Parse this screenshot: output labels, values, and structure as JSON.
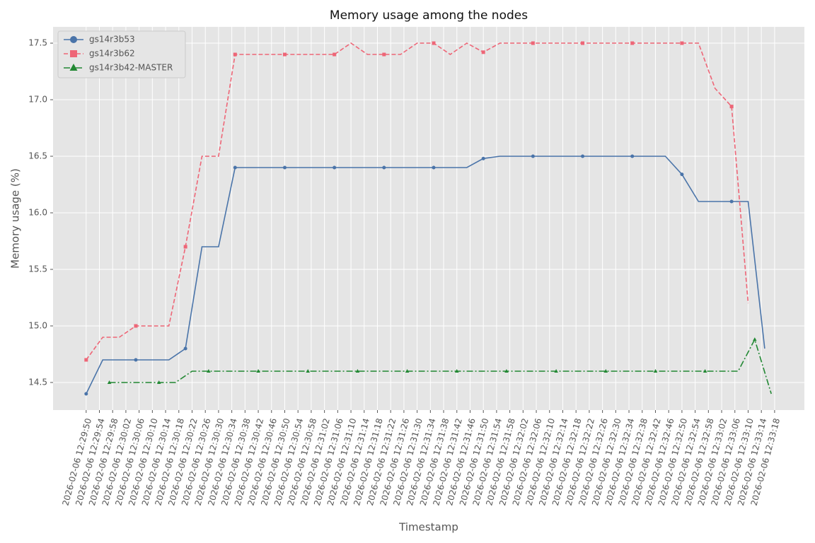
{
  "chart_data": {
    "type": "line",
    "title": "Memory usage among the nodes",
    "x_label": "Timestamp",
    "y_label": "Memory usage (%)",
    "grid": true,
    "legend": "upper left",
    "xlim": [
      "2026-02-06 12:29:40",
      "2026-02-06 12:33:27"
    ],
    "xticks": [
      "2026-02-06 12:29:50",
      "2026-02-06 12:29:54",
      "2026-02-06 12:29:58",
      "2026-02-06 12:30:02",
      "2026-02-06 12:30:06",
      "2026-02-06 12:30:10",
      "2026-02-06 12:30:14",
      "2026-02-06 12:30:18",
      "2026-02-06 12:30:22",
      "2026-02-06 12:30:26",
      "2026-02-06 12:30:30",
      "2026-02-06 12:30:34",
      "2026-02-06 12:30:38",
      "2026-02-06 12:30:42",
      "2026-02-06 12:30:46",
      "2026-02-06 12:30:50",
      "2026-02-06 12:30:54",
      "2026-02-06 12:30:58",
      "2026-02-06 12:31:02",
      "2026-02-06 12:31:06",
      "2026-02-06 12:31:10",
      "2026-02-06 12:31:14",
      "2026-02-06 12:31:18",
      "2026-02-06 12:31:22",
      "2026-02-06 12:31:26",
      "2026-02-06 12:31:30",
      "2026-02-06 12:31:34",
      "2026-02-06 12:31:38",
      "2026-02-06 12:31:42",
      "2026-02-06 12:31:46",
      "2026-02-06 12:31:50",
      "2026-02-06 12:31:54",
      "2026-02-06 12:31:58",
      "2026-02-06 12:32:02",
      "2026-02-06 12:32:06",
      "2026-02-06 12:32:10",
      "2026-02-06 12:32:14",
      "2026-02-06 12:32:18",
      "2026-02-06 12:32:22",
      "2026-02-06 12:32:26",
      "2026-02-06 12:32:30",
      "2026-02-06 12:32:34",
      "2026-02-06 12:32:38",
      "2026-02-06 12:32:42",
      "2026-02-06 12:32:46",
      "2026-02-06 12:32:50",
      "2026-02-06 12:32:54",
      "2026-02-06 12:32:58",
      "2026-02-06 12:33:02",
      "2026-02-06 12:33:06",
      "2026-02-06 12:33:10",
      "2026-02-06 12:33:14",
      "2026-02-06 12:33:18"
    ],
    "ylim": [
      14.256,
      17.644
    ],
    "yticks": [
      14.5,
      {
        "value": 15,
        "label": "15.0"
      },
      15.5,
      {
        "value": 16,
        "label": "16.0"
      },
      16.5,
      {
        "value": 17,
        "label": "17.0"
      },
      17.5
    ],
    "series": [
      {
        "name": "gs14r3b53",
        "color": "#4a74a9",
        "linestyle": "solid",
        "marker": "circle",
        "markevery": 3,
        "x": [
          "2026-02-06 12:29:50",
          "2026-02-06 12:29:55",
          "2026-02-06 12:30:00",
          "2026-02-06 12:30:05",
          "2026-02-06 12:30:10",
          "2026-02-06 12:30:15",
          "2026-02-06 12:30:20",
          "2026-02-06 12:30:25",
          "2026-02-06 12:30:30",
          "2026-02-06 12:30:35",
          "2026-02-06 12:30:40",
          "2026-02-06 12:30:45",
          "2026-02-06 12:30:50",
          "2026-02-06 12:30:55",
          "2026-02-06 12:31:00",
          "2026-02-06 12:31:05",
          "2026-02-06 12:31:10",
          "2026-02-06 12:31:15",
          "2026-02-06 12:31:20",
          "2026-02-06 12:31:25",
          "2026-02-06 12:31:30",
          "2026-02-06 12:31:35",
          "2026-02-06 12:31:40",
          "2026-02-06 12:31:45",
          "2026-02-06 12:31:50",
          "2026-02-06 12:31:55",
          "2026-02-06 12:32:00",
          "2026-02-06 12:32:05",
          "2026-02-06 12:32:10",
          "2026-02-06 12:32:15",
          "2026-02-06 12:32:20",
          "2026-02-06 12:32:25",
          "2026-02-06 12:32:30",
          "2026-02-06 12:32:35",
          "2026-02-06 12:32:40",
          "2026-02-06 12:32:45",
          "2026-02-06 12:32:50",
          "2026-02-06 12:32:55",
          "2026-02-06 12:33:00",
          "2026-02-06 12:33:05",
          "2026-02-06 12:33:10",
          "2026-02-06 12:33:15"
        ],
        "values": [
          14.4,
          14.7,
          14.7,
          14.7,
          14.7,
          14.7,
          14.8,
          15.7,
          15.7,
          16.4,
          16.4,
          16.4,
          16.4,
          16.4,
          16.4,
          16.4,
          16.4,
          16.4,
          16.4,
          16.4,
          16.4,
          16.4,
          16.4,
          16.4,
          16.48,
          16.5,
          16.5,
          16.5,
          16.5,
          16.5,
          16.5,
          16.5,
          16.5,
          16.5,
          16.5,
          16.5,
          16.34,
          16.1,
          16.1,
          16.1,
          16.1,
          14.8
        ]
      },
      {
        "name": "gs14r3b62",
        "color": "#ee6677",
        "linestyle": "dashed",
        "marker": "square",
        "markevery": 3,
        "x": [
          "2026-02-06 12:29:50",
          "2026-02-06 12:29:55",
          "2026-02-06 12:30:00",
          "2026-02-06 12:30:05",
          "2026-02-06 12:30:10",
          "2026-02-06 12:30:15",
          "2026-02-06 12:30:20",
          "2026-02-06 12:30:25",
          "2026-02-06 12:30:30",
          "2026-02-06 12:30:35",
          "2026-02-06 12:30:40",
          "2026-02-06 12:30:45",
          "2026-02-06 12:30:50",
          "2026-02-06 12:30:55",
          "2026-02-06 12:31:00",
          "2026-02-06 12:31:05",
          "2026-02-06 12:31:10",
          "2026-02-06 12:31:15",
          "2026-02-06 12:31:20",
          "2026-02-06 12:31:25",
          "2026-02-06 12:31:30",
          "2026-02-06 12:31:35",
          "2026-02-06 12:31:40",
          "2026-02-06 12:31:45",
          "2026-02-06 12:31:50",
          "2026-02-06 12:31:55",
          "2026-02-06 12:32:00",
          "2026-02-06 12:32:05",
          "2026-02-06 12:32:10",
          "2026-02-06 12:32:15",
          "2026-02-06 12:32:20",
          "2026-02-06 12:32:25",
          "2026-02-06 12:32:30",
          "2026-02-06 12:32:35",
          "2026-02-06 12:32:40",
          "2026-02-06 12:32:45",
          "2026-02-06 12:32:50",
          "2026-02-06 12:32:55",
          "2026-02-06 12:33:00",
          "2026-02-06 12:33:05",
          "2026-02-06 12:33:10"
        ],
        "values": [
          14.7,
          14.9,
          14.9,
          15.0,
          15.0,
          15.0,
          15.7,
          16.5,
          16.5,
          17.4,
          17.4,
          17.4,
          17.4,
          17.4,
          17.4,
          17.4,
          17.5,
          17.4,
          17.4,
          17.4,
          17.5,
          17.5,
          17.4,
          17.5,
          17.42,
          17.5,
          17.5,
          17.5,
          17.5,
          17.5,
          17.5,
          17.5,
          17.5,
          17.5,
          17.5,
          17.5,
          17.5,
          17.5,
          17.1,
          16.94,
          15.2
        ]
      },
      {
        "name": "gs14r3b42-MASTER",
        "color": "#228833",
        "linestyle": "dashdot",
        "marker": "triangle",
        "markevery": 3,
        "x": [
          "2026-02-06 12:29:57",
          "2026-02-06 12:30:02",
          "2026-02-06 12:30:07",
          "2026-02-06 12:30:12",
          "2026-02-06 12:30:17",
          "2026-02-06 12:30:22",
          "2026-02-06 12:30:27",
          "2026-02-06 12:30:32",
          "2026-02-06 12:30:37",
          "2026-02-06 12:30:42",
          "2026-02-06 12:30:47",
          "2026-02-06 12:30:52",
          "2026-02-06 12:30:57",
          "2026-02-06 12:31:02",
          "2026-02-06 12:31:07",
          "2026-02-06 12:31:12",
          "2026-02-06 12:31:17",
          "2026-02-06 12:31:22",
          "2026-02-06 12:31:27",
          "2026-02-06 12:31:32",
          "2026-02-06 12:31:37",
          "2026-02-06 12:31:42",
          "2026-02-06 12:31:47",
          "2026-02-06 12:31:52",
          "2026-02-06 12:31:57",
          "2026-02-06 12:32:02",
          "2026-02-06 12:32:07",
          "2026-02-06 12:32:12",
          "2026-02-06 12:32:17",
          "2026-02-06 12:32:22",
          "2026-02-06 12:32:27",
          "2026-02-06 12:32:32",
          "2026-02-06 12:32:37",
          "2026-02-06 12:32:42",
          "2026-02-06 12:32:47",
          "2026-02-06 12:32:52",
          "2026-02-06 12:32:57",
          "2026-02-06 12:33:02",
          "2026-02-06 12:33:07",
          "2026-02-06 12:33:12",
          "2026-02-06 12:33:17"
        ],
        "values": [
          14.5,
          14.5,
          14.5,
          14.5,
          14.5,
          14.6,
          14.6,
          14.6,
          14.6,
          14.6,
          14.6,
          14.6,
          14.6,
          14.6,
          14.6,
          14.6,
          14.6,
          14.6,
          14.6,
          14.6,
          14.6,
          14.6,
          14.6,
          14.6,
          14.6,
          14.6,
          14.6,
          14.6,
          14.6,
          14.6,
          14.6,
          14.6,
          14.6,
          14.6,
          14.6,
          14.6,
          14.6,
          14.6,
          14.6,
          14.88,
          14.4
        ]
      }
    ]
  }
}
